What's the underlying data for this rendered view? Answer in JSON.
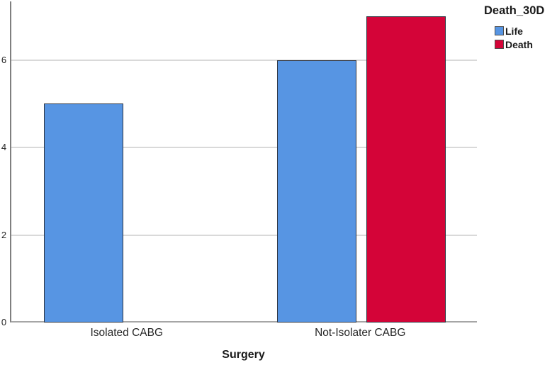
{
  "chart_data": {
    "type": "bar",
    "subtype": "clustered",
    "legend_title": "Death_30D",
    "xlabel": "Surgery",
    "ylabel": "",
    "categories": [
      "Isolated CABG",
      "Not-Isolater CABG"
    ],
    "series": [
      {
        "name": "Life",
        "color": "#5795e3",
        "values": [
          5,
          6
        ]
      },
      {
        "name": "Death",
        "color": "#d40438",
        "values": [
          0,
          7
        ]
      }
    ],
    "y_ticks": [
      "0",
      "2",
      "4",
      "6"
    ],
    "ylim": [
      0,
      7.34
    ],
    "grid": "horizontal",
    "legend_position": "top-right",
    "colors": {
      "bar_border": "#2e3440",
      "gridline": "#d9d9d9",
      "axis": "#8c8c8c",
      "text": "#262626",
      "background": "#ffffff"
    }
  }
}
